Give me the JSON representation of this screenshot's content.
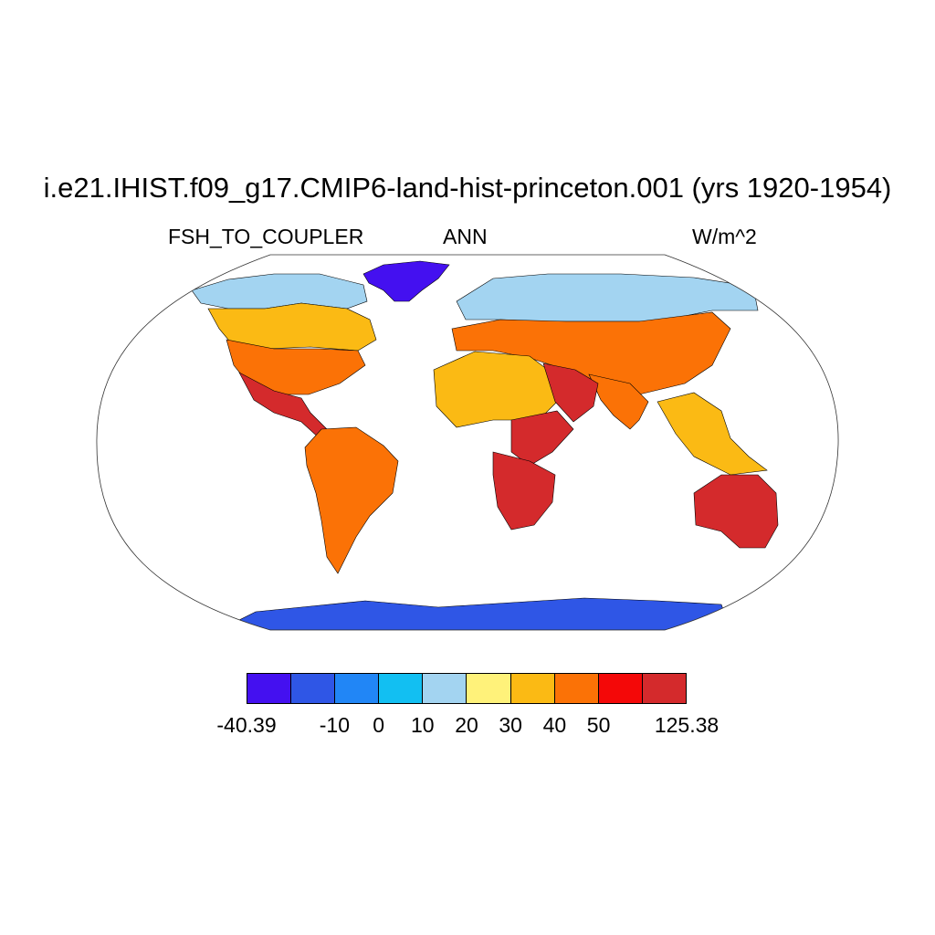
{
  "title": "i.e21.IHIST.f09_g17.CMIP6-land-hist-princeton.001 (yrs 1920-1954)",
  "left_subtitle": "FSH_TO_COUPLER",
  "center_subtitle": "ANN",
  "right_subtitle": "W/m^2",
  "colorbar": {
    "colors": [
      "#4410f0",
      "#2f56e6",
      "#2186f6",
      "#12bff2",
      "#a3d4f1",
      "#fff27a",
      "#fbba14",
      "#fb7206",
      "#f40808",
      "#d42a2c"
    ],
    "labels": [
      "-40.39",
      "-10",
      "0",
      "10",
      "20",
      "30",
      "40",
      "50",
      "125.38"
    ]
  },
  "regions": [
    {
      "name": "Greenland",
      "level": 0
    },
    {
      "name": "Antarctica",
      "level": 1
    },
    {
      "name": "Northern Canada",
      "level": 4
    },
    {
      "name": "Siberia",
      "level": 4
    },
    {
      "name": "Southern Canada",
      "level": 6
    },
    {
      "name": "Central Asia",
      "level": 7
    },
    {
      "name": "United States",
      "level": 7
    },
    {
      "name": "Sahara",
      "level": 6
    },
    {
      "name": "Arabian Peninsula",
      "level": 9
    },
    {
      "name": "Horn of Africa",
      "level": 9
    },
    {
      "name": "Southern Africa",
      "level": 9
    },
    {
      "name": "Mexico",
      "level": 9
    },
    {
      "name": "India",
      "level": 7
    },
    {
      "name": "South America",
      "level": 7
    },
    {
      "name": "Australia",
      "level": 9
    },
    {
      "name": "Southeast Asia",
      "level": 6
    }
  ]
}
